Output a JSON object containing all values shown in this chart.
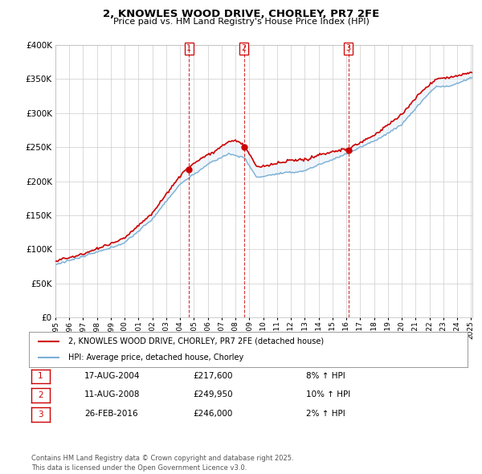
{
  "title": "2, KNOWLES WOOD DRIVE, CHORLEY, PR7 2FE",
  "subtitle": "Price paid vs. HM Land Registry's House Price Index (HPI)",
  "ylim": [
    0,
    400000
  ],
  "yticks": [
    0,
    50000,
    100000,
    150000,
    200000,
    250000,
    300000,
    350000,
    400000
  ],
  "hpi_color": "#7bafd4",
  "price_color": "#cc0000",
  "fill_color": "#d6e8f5",
  "marker_color": "#cc0000",
  "transaction_dates": [
    2004.63,
    2008.62,
    2016.16
  ],
  "transaction_prices": [
    217600,
    249950,
    246000
  ],
  "transaction_labels": [
    "1",
    "2",
    "3"
  ],
  "transaction_info": [
    {
      "label": "1",
      "date": "17-AUG-2004",
      "price": "£217,600",
      "hpi": "8% ↑ HPI"
    },
    {
      "label": "2",
      "date": "11-AUG-2008",
      "price": "£249,950",
      "hpi": "10% ↑ HPI"
    },
    {
      "label": "3",
      "date": "26-FEB-2016",
      "price": "£246,000",
      "hpi": "2% ↑ HPI"
    }
  ],
  "legend_line1": "2, KNOWLES WOOD DRIVE, CHORLEY, PR7 2FE (detached house)",
  "legend_line2": "HPI: Average price, detached house, Chorley",
  "footer": "Contains HM Land Registry data © Crown copyright and database right 2025.\nThis data is licensed under the Open Government Licence v3.0.",
  "grid_color": "#cccccc",
  "bg_color": "#ffffff",
  "plot_bg_color": "#ffffff"
}
